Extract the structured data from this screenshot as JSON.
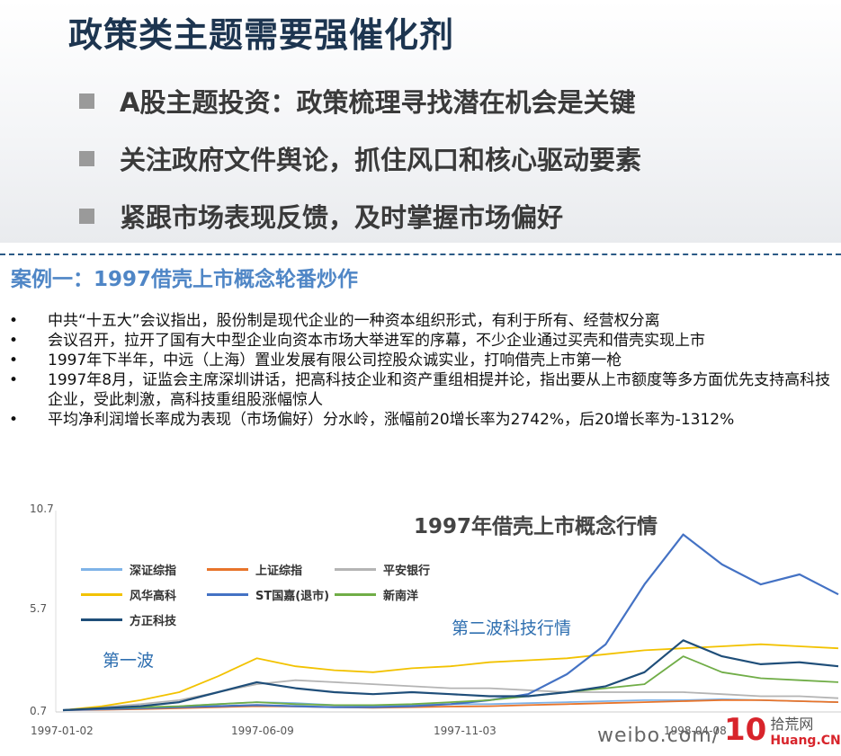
{
  "header": {
    "title": "政策类主题需要强催化剂",
    "points": [
      "A股主题投资：政策梳理寻找潜在机会是关键",
      "关注政府文件舆论，抓住风口和核心驱动要素",
      "紧跟市场表现反馈，及时掌握市场偏好"
    ]
  },
  "case": {
    "title": "案例一：1997借壳上市概念轮番炒作",
    "bullets": [
      "中共“十五大”会议指出，股份制是现代企业的一种资本组织形式，有利于所有、经营权分离",
      "会议召开，拉开了国有大中型企业向资本市场大举进军的序幕，不少企业通过买壳和借壳实现上市",
      "1997年下半年，中远（上海）置业发展有限公司控股众诚实业，打响借壳上市第一枪",
      "1997年8月，证监会主席深圳讲话，把高科技企业和资产重组相提并论，指出要从上市额度等多方面优先支持高科技企业，受此刺激，高科技重组股涨幅惊人",
      "平均净利润增长率成为表现（市场偏好）分水岭，涨幅前20增长率为2742%，后20增长率为-1312%"
    ],
    "bullet_symbol": "•"
  },
  "chart_data": {
    "type": "line",
    "title": "1997年借壳上市概念行情",
    "x_ticks": [
      "1997-01-02",
      "1997-06-09",
      "1997-11-03",
      "1998-04-08"
    ],
    "y_ticks": [
      "10.7",
      "5.7",
      "0.7"
    ],
    "ylim": [
      0.7,
      10.7
    ],
    "annotations": [
      "第一波",
      "第二波科技行情"
    ],
    "legend_position": "top-left",
    "grid": false,
    "x": [
      0,
      0.05,
      0.1,
      0.15,
      0.2,
      0.25,
      0.3,
      0.35,
      0.4,
      0.45,
      0.5,
      0.55,
      0.6,
      0.65,
      0.7,
      0.75,
      0.8,
      0.85,
      0.9,
      0.95,
      1.0
    ],
    "series": [
      {
        "name": "深证综指",
        "color": "#7fb3e8",
        "values": [
          0.7,
          0.75,
          0.8,
          0.9,
          1.0,
          1.1,
          1.05,
          0.95,
          0.9,
          0.95,
          1.0,
          1.0,
          1.05,
          1.1,
          1.15,
          1.2,
          1.2,
          1.25,
          1.2,
          1.15,
          1.1
        ]
      },
      {
        "name": "上证综指",
        "color": "#e8742a",
        "values": [
          0.7,
          0.72,
          0.75,
          0.8,
          0.85,
          0.9,
          0.88,
          0.85,
          0.82,
          0.85,
          0.88,
          0.9,
          0.95,
          1.0,
          1.05,
          1.1,
          1.15,
          1.2,
          1.2,
          1.15,
          1.1
        ]
      },
      {
        "name": "平安银行",
        "color": "#b4b4b4",
        "values": [
          0.7,
          0.85,
          1.0,
          1.2,
          1.6,
          2.0,
          2.2,
          2.1,
          2.0,
          1.9,
          1.8,
          1.8,
          1.7,
          1.6,
          1.6,
          1.6,
          1.6,
          1.5,
          1.4,
          1.4,
          1.3
        ]
      },
      {
        "name": "风华高科",
        "color": "#f2c200",
        "values": [
          0.7,
          0.9,
          1.2,
          1.6,
          2.4,
          3.3,
          2.9,
          2.7,
          2.6,
          2.8,
          2.9,
          3.1,
          3.2,
          3.3,
          3.5,
          3.7,
          3.8,
          3.9,
          4.0,
          3.9,
          3.8
        ]
      },
      {
        "name": "ST国嘉(退市)",
        "color": "#4472c4",
        "values": [
          0.7,
          0.75,
          0.8,
          0.85,
          0.9,
          0.95,
          0.9,
          0.85,
          0.85,
          0.9,
          1.0,
          1.2,
          1.5,
          2.5,
          4.0,
          7.0,
          9.5,
          8.0,
          7.0,
          7.5,
          6.5
        ]
      },
      {
        "name": "新南洋",
        "color": "#70ad47",
        "values": [
          0.7,
          0.8,
          0.85,
          0.9,
          1.0,
          1.1,
          1.0,
          0.95,
          0.95,
          1.0,
          1.1,
          1.2,
          1.4,
          1.6,
          1.8,
          2.0,
          3.4,
          2.6,
          2.3,
          2.2,
          2.1
        ]
      },
      {
        "name": "方正科技",
        "color": "#1f4e79",
        "values": [
          0.7,
          0.8,
          0.9,
          1.1,
          1.6,
          2.1,
          1.8,
          1.6,
          1.5,
          1.6,
          1.5,
          1.4,
          1.4,
          1.6,
          1.9,
          2.6,
          4.2,
          3.4,
          3.0,
          3.1,
          2.9
        ]
      }
    ]
  },
  "watermark": {
    "text": "weibo.com/",
    "logo_number": "10",
    "logo_cn": "拾荒网",
    "logo_en": "Huang.CN"
  }
}
